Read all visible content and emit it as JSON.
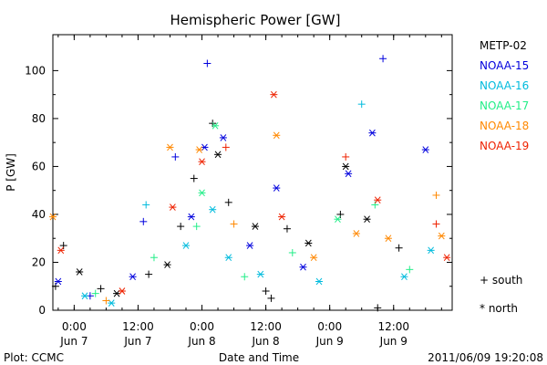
{
  "chart_data": {
    "type": "scatter",
    "title": "Hemispheric Power [GW]",
    "ylabel": "P [GW]",
    "xlabel": "Date and Time",
    "ylim": [
      0,
      115
    ],
    "yticks": [
      0,
      20,
      40,
      60,
      80,
      100
    ],
    "xlim": [
      "2011-06-06T20:00",
      "2011-06-09T23:00"
    ],
    "xticks": [
      {
        "t": "2011-06-07T00:00",
        "time": "0:00",
        "date": "Jun 7"
      },
      {
        "t": "2011-06-07T12:00",
        "time": "12:00",
        "date": "Jun 7"
      },
      {
        "t": "2011-06-08T00:00",
        "time": "0:00",
        "date": "Jun 8"
      },
      {
        "t": "2011-06-08T12:00",
        "time": "12:00",
        "date": "Jun 8"
      },
      {
        "t": "2011-06-09T00:00",
        "time": "0:00",
        "date": "Jun 9"
      },
      {
        "t": "2011-06-09T12:00",
        "time": "12:00",
        "date": "Jun 9"
      }
    ],
    "markers": {
      "south": "+ south",
      "north": "* north"
    },
    "series": [
      {
        "name": "METP-02",
        "color": "#000000",
        "points": [
          {
            "t": "2011-06-06T20:30",
            "y": 10,
            "m": "+"
          },
          {
            "t": "2011-06-06T22:00",
            "y": 27,
            "m": "+"
          },
          {
            "t": "2011-06-07T01:00",
            "y": 16,
            "m": "*"
          },
          {
            "t": "2011-06-07T05:00",
            "y": 9,
            "m": "+"
          },
          {
            "t": "2011-06-07T08:00",
            "y": 7,
            "m": "*"
          },
          {
            "t": "2011-06-07T14:00",
            "y": 15,
            "m": "+"
          },
          {
            "t": "2011-06-07T17:30",
            "y": 19,
            "m": "*"
          },
          {
            "t": "2011-06-07T20:00",
            "y": 35,
            "m": "+"
          },
          {
            "t": "2011-06-07T22:30",
            "y": 55,
            "m": "+"
          },
          {
            "t": "2011-06-08T02:00",
            "y": 78,
            "m": "+"
          },
          {
            "t": "2011-06-08T03:00",
            "y": 65,
            "m": "*"
          },
          {
            "t": "2011-06-08T05:00",
            "y": 45,
            "m": "+"
          },
          {
            "t": "2011-06-08T10:00",
            "y": 35,
            "m": "*"
          },
          {
            "t": "2011-06-08T12:00",
            "y": 8,
            "m": "+"
          },
          {
            "t": "2011-06-08T13:00",
            "y": 5,
            "m": "+"
          },
          {
            "t": "2011-06-08T16:00",
            "y": 34,
            "m": "+"
          },
          {
            "t": "2011-06-08T20:00",
            "y": 28,
            "m": "*"
          },
          {
            "t": "2011-06-09T02:00",
            "y": 40,
            "m": "+"
          },
          {
            "t": "2011-06-09T03:00",
            "y": 60,
            "m": "*"
          },
          {
            "t": "2011-06-09T07:00",
            "y": 38,
            "m": "*"
          },
          {
            "t": "2011-06-09T09:00",
            "y": 1,
            "m": "+"
          },
          {
            "t": "2011-06-09T13:00",
            "y": 26,
            "m": "+"
          }
        ]
      },
      {
        "name": "NOAA-15",
        "color": "#0000dd",
        "points": [
          {
            "t": "2011-06-06T21:00",
            "y": 12,
            "m": "*"
          },
          {
            "t": "2011-06-07T03:00",
            "y": 6,
            "m": "+"
          },
          {
            "t": "2011-06-07T11:00",
            "y": 14,
            "m": "*"
          },
          {
            "t": "2011-06-07T13:00",
            "y": 37,
            "m": "+"
          },
          {
            "t": "2011-06-07T19:00",
            "y": 64,
            "m": "+"
          },
          {
            "t": "2011-06-07T22:00",
            "y": 39,
            "m": "*"
          },
          {
            "t": "2011-06-08T00:30",
            "y": 68,
            "m": "*"
          },
          {
            "t": "2011-06-08T01:00",
            "y": 103,
            "m": "+"
          },
          {
            "t": "2011-06-08T04:00",
            "y": 72,
            "m": "*"
          },
          {
            "t": "2011-06-08T09:00",
            "y": 27,
            "m": "*"
          },
          {
            "t": "2011-06-08T14:00",
            "y": 51,
            "m": "*"
          },
          {
            "t": "2011-06-08T19:00",
            "y": 18,
            "m": "*"
          },
          {
            "t": "2011-06-09T03:30",
            "y": 57,
            "m": "*"
          },
          {
            "t": "2011-06-09T08:00",
            "y": 74,
            "m": "*"
          },
          {
            "t": "2011-06-09T10:00",
            "y": 105,
            "m": "+"
          },
          {
            "t": "2011-06-09T18:00",
            "y": 67,
            "m": "*"
          }
        ]
      },
      {
        "name": "NOAA-16",
        "color": "#00bbdd",
        "points": [
          {
            "t": "2011-06-07T02:00",
            "y": 6,
            "m": "*"
          },
          {
            "t": "2011-06-07T07:00",
            "y": 3,
            "m": "*"
          },
          {
            "t": "2011-06-07T13:30",
            "y": 44,
            "m": "+"
          },
          {
            "t": "2011-06-07T21:00",
            "y": 27,
            "m": "*"
          },
          {
            "t": "2011-06-08T02:00",
            "y": 42,
            "m": "*"
          },
          {
            "t": "2011-06-08T05:00",
            "y": 22,
            "m": "*"
          },
          {
            "t": "2011-06-08T11:00",
            "y": 15,
            "m": "*"
          },
          {
            "t": "2011-06-08T22:00",
            "y": 12,
            "m": "*"
          },
          {
            "t": "2011-06-09T06:00",
            "y": 86,
            "m": "+"
          },
          {
            "t": "2011-06-09T14:00",
            "y": 14,
            "m": "*"
          },
          {
            "t": "2011-06-09T19:00",
            "y": 25,
            "m": "*"
          }
        ]
      },
      {
        "name": "NOAA-17",
        "color": "#22ee88",
        "points": [
          {
            "t": "2011-06-07T04:00",
            "y": 7,
            "m": "+"
          },
          {
            "t": "2011-06-07T15:00",
            "y": 22,
            "m": "+"
          },
          {
            "t": "2011-06-07T23:00",
            "y": 35,
            "m": "+"
          },
          {
            "t": "2011-06-08T00:00",
            "y": 49,
            "m": "*"
          },
          {
            "t": "2011-06-08T02:30",
            "y": 77,
            "m": "*"
          },
          {
            "t": "2011-06-08T08:00",
            "y": 14,
            "m": "+"
          },
          {
            "t": "2011-06-08T17:00",
            "y": 24,
            "m": "+"
          },
          {
            "t": "2011-06-09T01:30",
            "y": 38,
            "m": "*"
          },
          {
            "t": "2011-06-09T08:30",
            "y": 44,
            "m": "+"
          },
          {
            "t": "2011-06-09T15:00",
            "y": 17,
            "m": "+"
          }
        ]
      },
      {
        "name": "NOAA-18",
        "color": "#ff8800",
        "points": [
          {
            "t": "2011-06-06T20:00",
            "y": 39,
            "m": "*"
          },
          {
            "t": "2011-06-07T06:00",
            "y": 4,
            "m": "+"
          },
          {
            "t": "2011-06-07T18:00",
            "y": 68,
            "m": "*"
          },
          {
            "t": "2011-06-07T23:30",
            "y": 67,
            "m": "*"
          },
          {
            "t": "2011-06-08T06:00",
            "y": 36,
            "m": "+"
          },
          {
            "t": "2011-06-08T14:00",
            "y": 73,
            "m": "*"
          },
          {
            "t": "2011-06-08T21:00",
            "y": 22,
            "m": "*"
          },
          {
            "t": "2011-06-09T05:00",
            "y": 32,
            "m": "*"
          },
          {
            "t": "2011-06-09T11:00",
            "y": 30,
            "m": "*"
          },
          {
            "t": "2011-06-09T20:00",
            "y": 48,
            "m": "+"
          },
          {
            "t": "2011-06-09T21:00",
            "y": 31,
            "m": "*"
          }
        ]
      },
      {
        "name": "NOAA-19",
        "color": "#ee2200",
        "points": [
          {
            "t": "2011-06-06T21:30",
            "y": 25,
            "m": "*"
          },
          {
            "t": "2011-06-07T09:00",
            "y": 8,
            "m": "*"
          },
          {
            "t": "2011-06-07T18:30",
            "y": 43,
            "m": "*"
          },
          {
            "t": "2011-06-08T00:00",
            "y": 62,
            "m": "*"
          },
          {
            "t": "2011-06-08T04:30",
            "y": 68,
            "m": "+"
          },
          {
            "t": "2011-06-08T13:30",
            "y": 90,
            "m": "*"
          },
          {
            "t": "2011-06-08T15:00",
            "y": 39,
            "m": "*"
          },
          {
            "t": "2011-06-09T03:00",
            "y": 64,
            "m": "+"
          },
          {
            "t": "2011-06-09T09:00",
            "y": 46,
            "m": "*"
          },
          {
            "t": "2011-06-09T20:00",
            "y": 36,
            "m": "+"
          },
          {
            "t": "2011-06-09T22:00",
            "y": 22,
            "m": "*"
          }
        ]
      }
    ]
  },
  "footer": {
    "left": "Plot: CCMC",
    "right": "2011/06/09 19:20:08"
  }
}
